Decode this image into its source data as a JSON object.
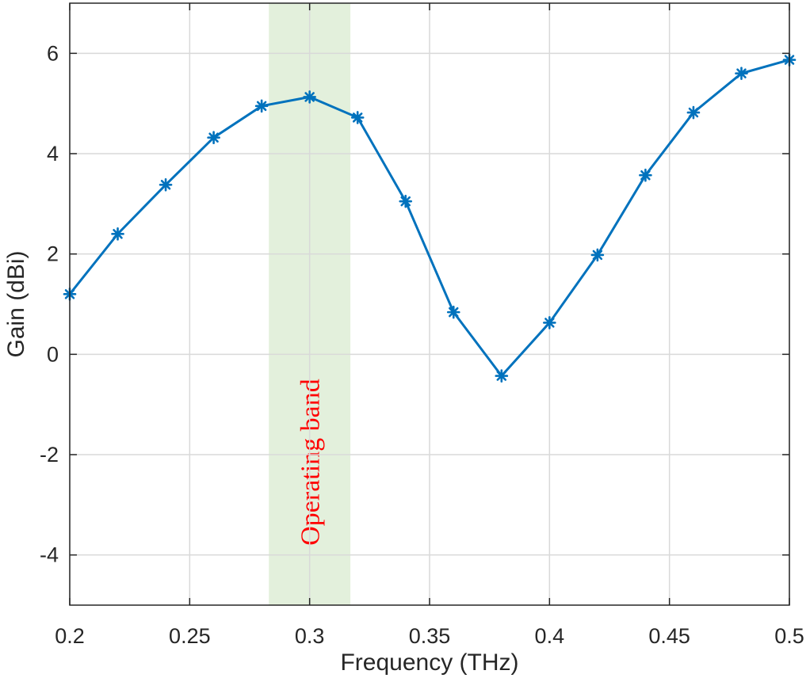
{
  "chart_data": {
    "type": "line",
    "title": "",
    "xlabel": "Frequency (THz)",
    "ylabel": "Gain (dBi)",
    "xlim": [
      0.2,
      0.5
    ],
    "ylim": [
      -5,
      7
    ],
    "grid": true,
    "xticks": [
      0.2,
      0.25,
      0.3,
      0.35,
      0.4,
      0.45,
      0.5
    ],
    "xtick_labels": [
      "0.2",
      "0.25",
      "0.3",
      "0.35",
      "0.4",
      "0.45",
      "0.5"
    ],
    "yticks": [
      -4,
      -2,
      0,
      2,
      4,
      6
    ],
    "ytick_labels": [
      "-4",
      "-2",
      "0",
      "2",
      "4",
      "6"
    ],
    "series": [
      {
        "x": [
          0.2,
          0.22,
          0.24,
          0.26,
          0.28,
          0.3,
          0.32,
          0.34,
          0.36,
          0.38,
          0.4,
          0.42,
          0.44,
          0.46,
          0.48,
          0.5
        ],
        "y": [
          1.2,
          2.4,
          3.38,
          4.32,
          4.95,
          5.13,
          4.72,
          3.05,
          0.84,
          -0.43,
          0.63,
          1.98,
          3.57,
          4.82,
          5.6,
          5.87
        ],
        "color": "#0072bd",
        "marker": "asterisk"
      }
    ],
    "shaded_band": {
      "x_range": [
        0.283,
        0.317
      ],
      "color": "#e3f0dc",
      "label": "Operating band",
      "label_color": "#ff0000"
    }
  }
}
